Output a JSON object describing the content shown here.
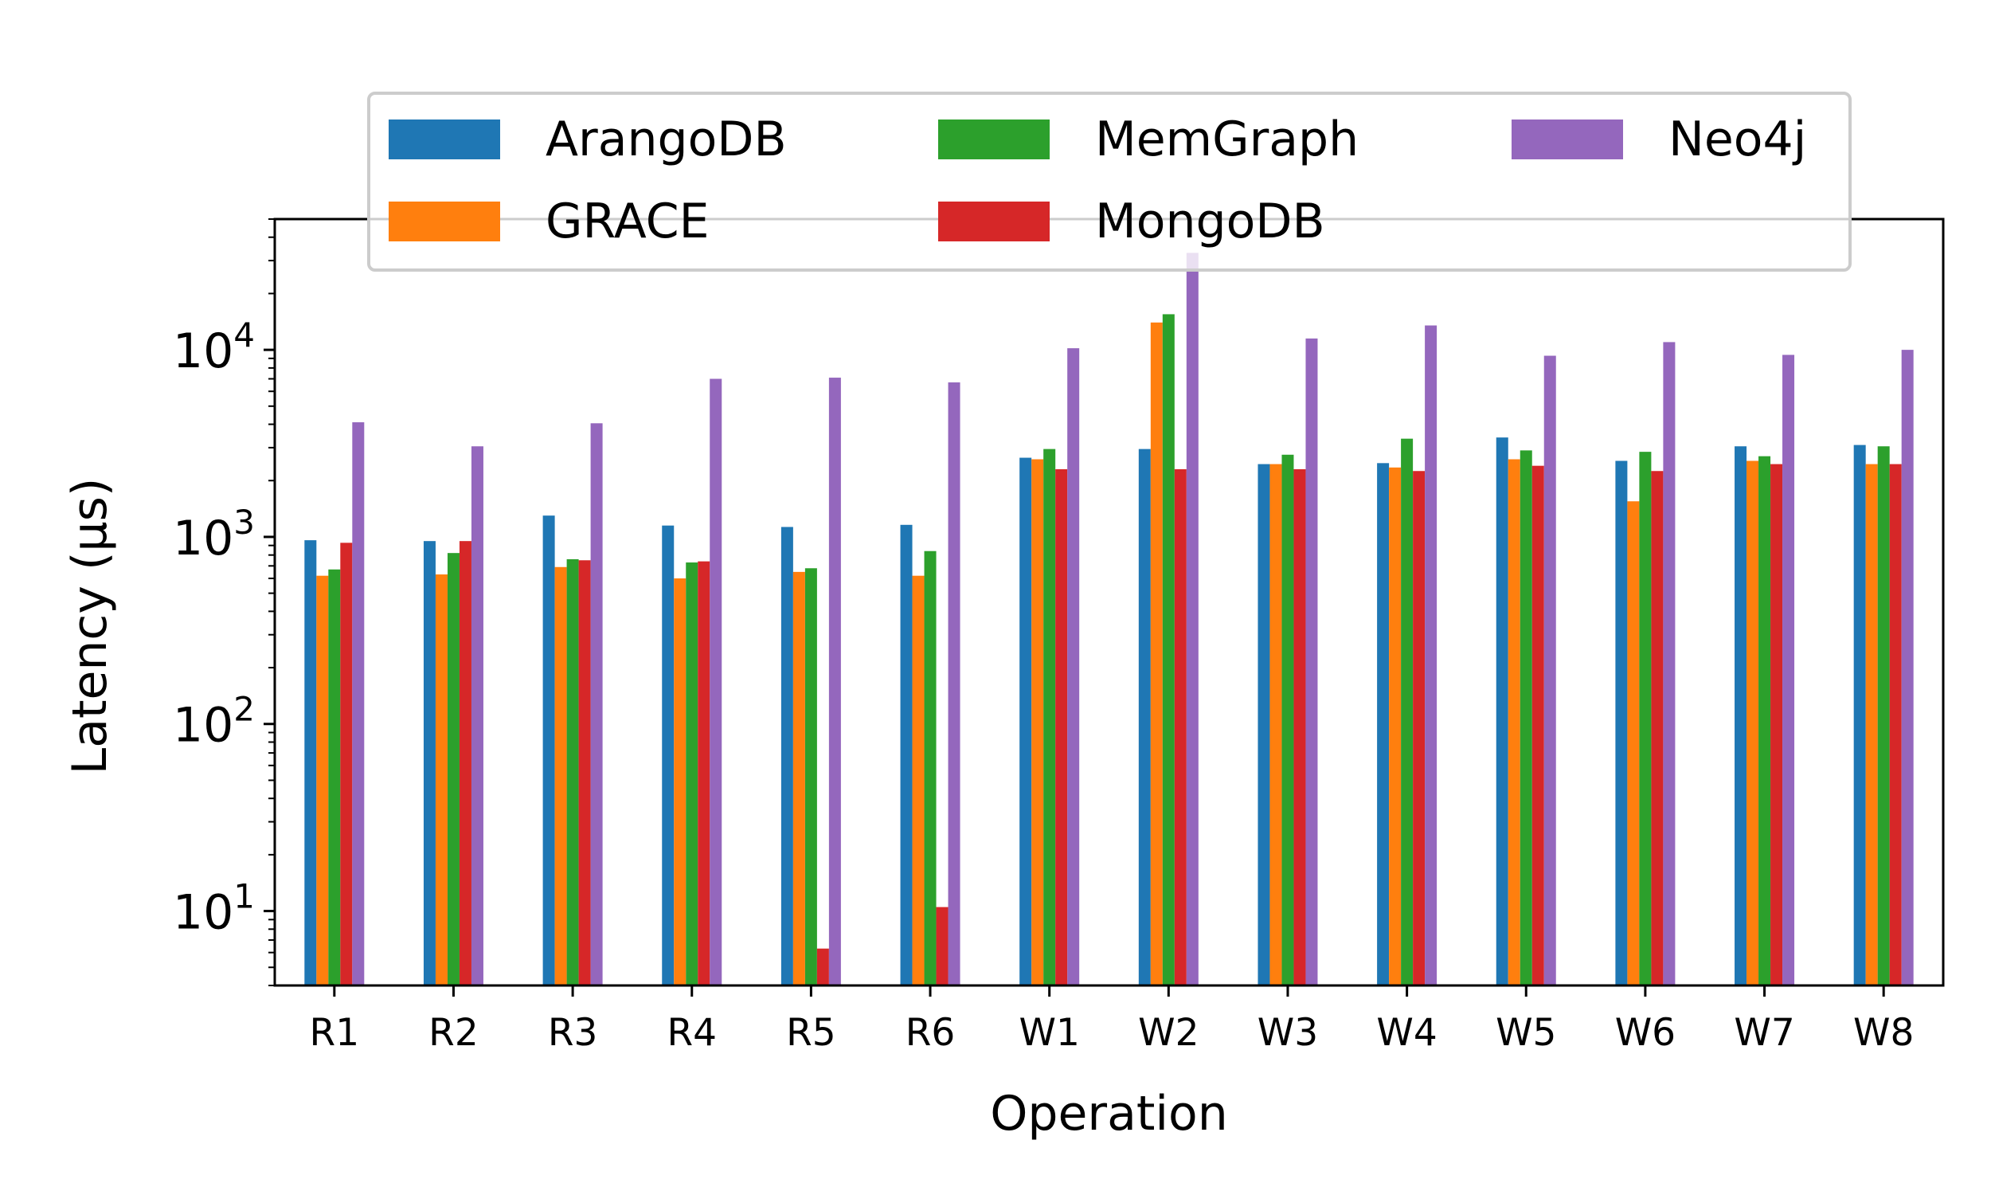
{
  "chart_data": {
    "type": "bar",
    "xlabel": "Operation",
    "ylabel": "Latency (µs)",
    "yscale": "log",
    "ylim": [
      4,
      50000
    ],
    "grid": false,
    "legend_placement": "top-center",
    "categories": [
      "R1",
      "R2",
      "R3",
      "R4",
      "R5",
      "R6",
      "W1",
      "W2",
      "W3",
      "W4",
      "W5",
      "W6",
      "W7",
      "W8"
    ],
    "y_ticks": [
      {
        "base": "10",
        "exp": "1",
        "value": 10
      },
      {
        "base": "10",
        "exp": "2",
        "value": 100
      },
      {
        "base": "10",
        "exp": "3",
        "value": 1000
      },
      {
        "base": "10",
        "exp": "4",
        "value": 10000
      }
    ],
    "series": [
      {
        "name": "ArangoDB",
        "color": "#1f77b4",
        "values": [
          960,
          950,
          1300,
          1150,
          1130,
          1160,
          2650,
          2950,
          2450,
          2480,
          3400,
          2550,
          3050,
          3100
        ]
      },
      {
        "name": "GRACE",
        "color": "#ff7f0e",
        "values": [
          620,
          630,
          690,
          600,
          650,
          620,
          2600,
          14000,
          2450,
          2350,
          2600,
          1550,
          2550,
          2450
        ]
      },
      {
        "name": "MemGraph",
        "color": "#2ca02c",
        "values": [
          670,
          820,
          760,
          730,
          680,
          840,
          2950,
          15500,
          2750,
          3350,
          2900,
          2850,
          2700,
          3050
        ]
      },
      {
        "name": "MongoDB",
        "color": "#d62728",
        "values": [
          930,
          950,
          750,
          740,
          6.3,
          10.5,
          2300,
          2300,
          2300,
          2250,
          2400,
          2250,
          2450,
          2450
        ]
      },
      {
        "name": "Neo4j",
        "color": "#9467bd",
        "values": [
          4100,
          3050,
          4050,
          7000,
          7100,
          6700,
          10200,
          33000,
          11500,
          13500,
          9300,
          11000,
          9400,
          10000
        ]
      }
    ]
  }
}
